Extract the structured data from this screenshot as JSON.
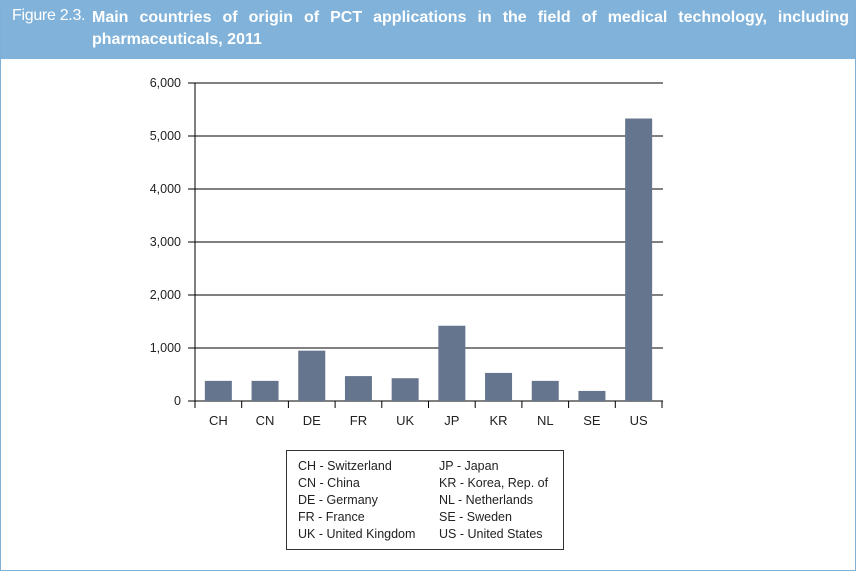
{
  "header": {
    "figure_label": "Figure 2.3.",
    "title": "Main countries of origin of PCT applications in the field of medical technology, including pharmaceuticals, 2011",
    "background_color": "#81b3da"
  },
  "chart_data": {
    "type": "bar",
    "title": "Main countries of origin of PCT applications in the field of medical technology, including pharmaceuticals, 2011",
    "xlabel": "",
    "ylabel": "",
    "categories": [
      "CH",
      "CN",
      "DE",
      "FR",
      "UK",
      "JP",
      "KR",
      "NL",
      "SE",
      "US"
    ],
    "values": [
      380,
      380,
      950,
      470,
      430,
      1420,
      530,
      380,
      190,
      5330
    ],
    "ylim": [
      0,
      6000
    ],
    "yticks": [
      "0",
      "1,000",
      "2,000",
      "3,000",
      "4,000",
      "5,000",
      "6,000"
    ],
    "ytick_values": [
      0,
      1000,
      2000,
      3000,
      4000,
      5000,
      6000
    ],
    "grid": true,
    "bar_color": "#66758e"
  },
  "legend": {
    "left_column": [
      "CH - Switzerland",
      "CN - China",
      "DE - Germany",
      "FR - France",
      "UK - United Kingdom"
    ],
    "right_column": [
      "JP - Japan",
      "KR - Korea, Rep. of",
      "NL - Netherlands",
      "SE - Sweden",
      "US - United States"
    ]
  }
}
